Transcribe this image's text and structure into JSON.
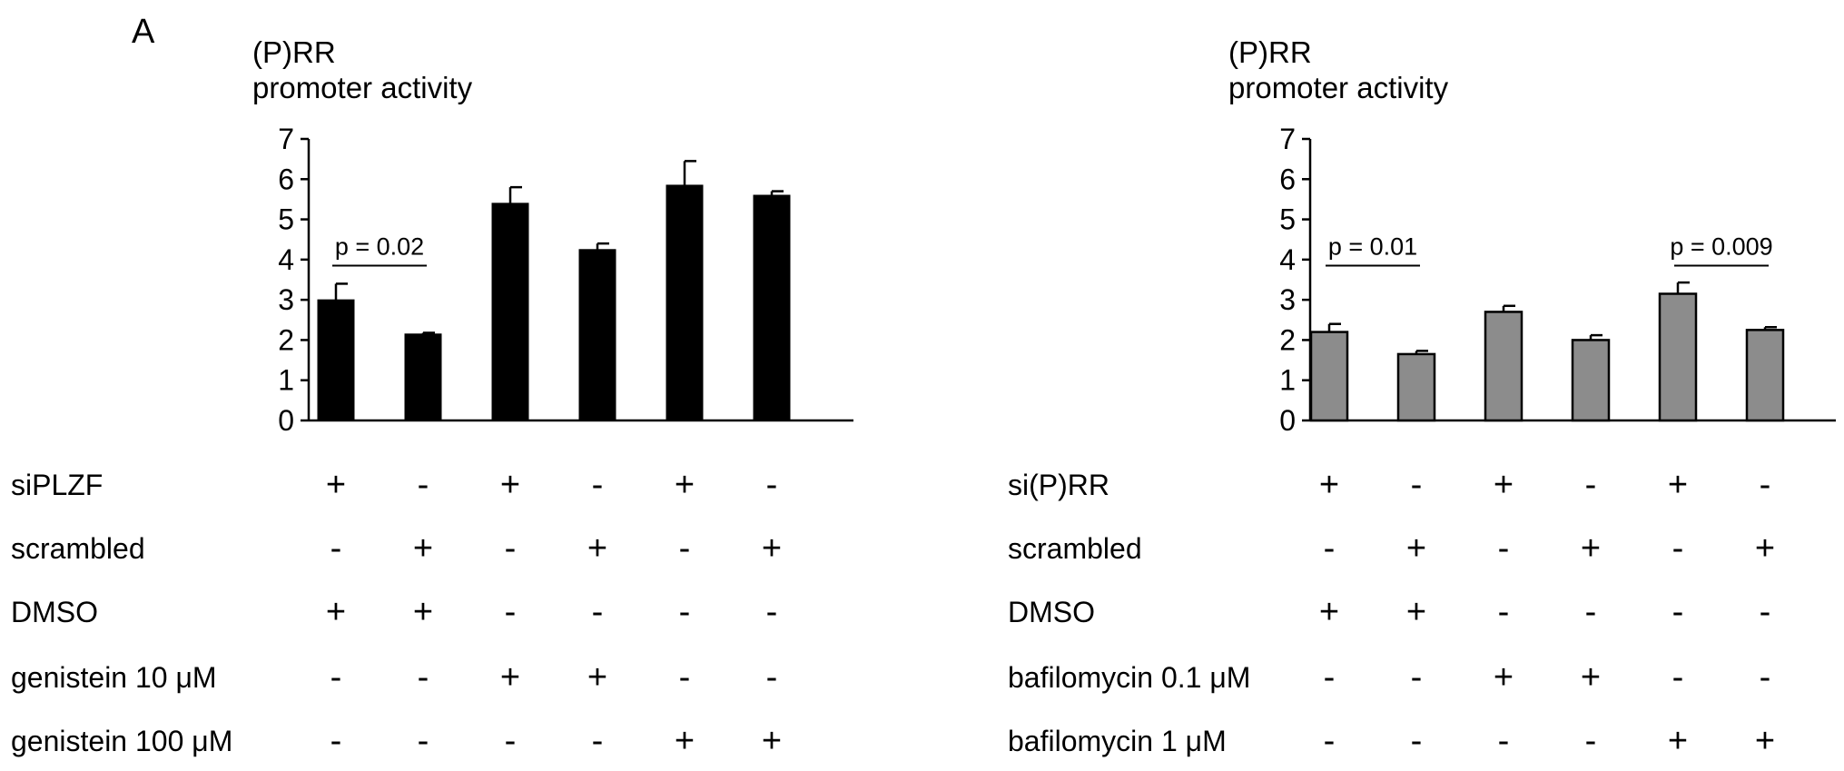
{
  "panel_label": "A",
  "chart_data": [
    {
      "type": "bar",
      "title": "",
      "ylabel": [
        "(P)RR",
        "promoter activity"
      ],
      "ylim": [
        0,
        7
      ],
      "yticks": [
        "0",
        "1",
        "2",
        "3",
        "4",
        "5",
        "6",
        "7"
      ],
      "bar_color": "#000000",
      "grid": false,
      "series": [
        {
          "values": [
            3.0,
            2.15,
            5.4,
            4.25,
            5.85,
            5.6
          ],
          "errors": [
            0.4,
            0.03,
            0.4,
            0.15,
            0.6,
            0.1
          ]
        }
      ],
      "annotations": [
        {
          "text": "p = 0.02",
          "from": 0,
          "to": 1
        }
      ],
      "conditions": {
        "rows": [
          "siPLZF",
          "scrambled",
          "DMSO",
          "genistein 10 μM",
          "genistein 100 μM"
        ],
        "values": [
          [
            "+",
            "-",
            "+",
            "-",
            "+",
            "-"
          ],
          [
            "-",
            "+",
            "-",
            "+",
            "-",
            "+"
          ],
          [
            "+",
            "+",
            "-",
            "-",
            "-",
            "-"
          ],
          [
            "-",
            "-",
            "+",
            "+",
            "-",
            "-"
          ],
          [
            "-",
            "-",
            "-",
            "-",
            "+",
            "+"
          ]
        ]
      }
    },
    {
      "type": "bar",
      "title": "",
      "ylabel": [
        "(P)RR",
        "promoter activity"
      ],
      "ylim": [
        0,
        7
      ],
      "yticks": [
        "0",
        "1",
        "2",
        "3",
        "4",
        "5",
        "6",
        "7"
      ],
      "bar_color": "#8c8c8c",
      "grid": false,
      "series": [
        {
          "values": [
            2.2,
            1.65,
            2.7,
            2.0,
            3.15,
            2.25
          ],
          "errors": [
            0.2,
            0.08,
            0.15,
            0.12,
            0.28,
            0.07
          ]
        }
      ],
      "annotations": [
        {
          "text": "p = 0.01",
          "from": 0,
          "to": 1
        },
        {
          "text": "p = 0.009",
          "from": 4,
          "to": 5
        }
      ],
      "conditions": {
        "rows": [
          "si(P)RR",
          "scrambled",
          "DMSO",
          "bafilomycin 0.1 μM",
          "bafilomycin    1 μM"
        ],
        "values": [
          [
            "+",
            "-",
            "+",
            "-",
            "+",
            "-"
          ],
          [
            "-",
            "+",
            "-",
            "+",
            "-",
            "+"
          ],
          [
            "+",
            "+",
            "-",
            "-",
            "-",
            "-"
          ],
          [
            "-",
            "-",
            "+",
            "+",
            "-",
            "-"
          ],
          [
            "-",
            "-",
            "-",
            "-",
            "+",
            "+"
          ]
        ]
      }
    }
  ]
}
